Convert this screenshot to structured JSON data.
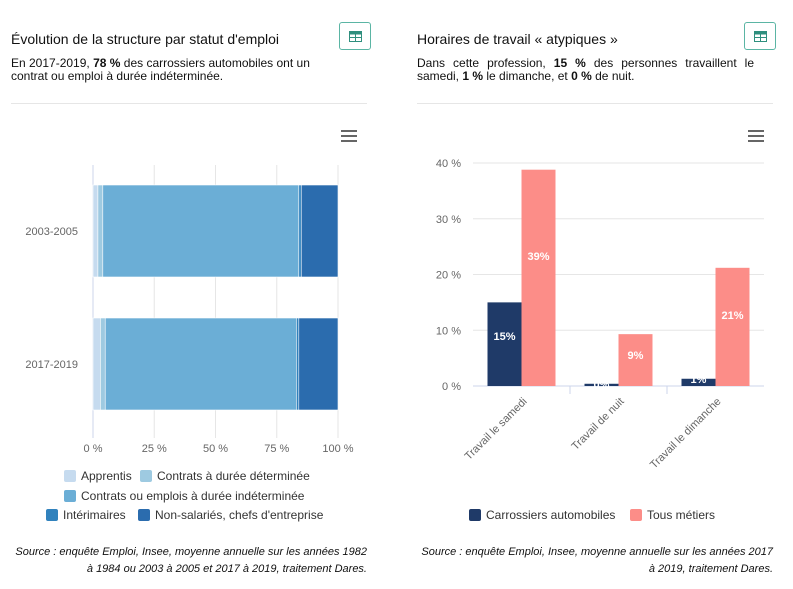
{
  "left": {
    "title": "Évolution de la structure par statut d'emploi",
    "subtitle_pre": "En 2017-2019, ",
    "subtitle_bold": "78 %",
    "subtitle_post": " des carrossiers automobiles ont un contrat ou emploi à durée indéterminée.",
    "table_icon": "table-icon",
    "menu_icon": "hamburger-menu-icon",
    "source_line1": "Source : enquête Emploi, Insee, moyenne annuelle sur les années 1982",
    "source_line2": "à 1984 ou 2003 à 2005 et 2017 à 2019, traitement Dares."
  },
  "right": {
    "title": "Horaires de travail « atypiques »",
    "subtitle_p1": "Dans cette profession, ",
    "subtitle_b1": "15 %",
    "subtitle_p2": " des personnes travaillent le samedi, ",
    "subtitle_b2": "1 %",
    "subtitle_p3": " le dimanche, et ",
    "subtitle_b3": "0 %",
    "subtitle_p4": " de nuit.",
    "table_icon": "table-icon",
    "menu_icon": "hamburger-menu-icon",
    "source_line1": "Source : enquête Emploi, Insee, moyenne annuelle sur les années 2017",
    "source_line2": "à 2019, traitement Dares."
  },
  "chart_data": [
    {
      "type": "bar",
      "orientation": "horizontal",
      "stacking": "percent",
      "title": "Évolution de la structure par statut d'emploi",
      "categories": [
        "2003-2005",
        "2017-2019"
      ],
      "x_ticks": [
        "0 %",
        "25 %",
        "50 %",
        "75 %",
        "100 %"
      ],
      "xlim": [
        0,
        100
      ],
      "legend_position": "bottom",
      "grid": true,
      "series": [
        {
          "name": "Apprentis",
          "color": "#c6dbef",
          "values": [
            2,
            3
          ]
        },
        {
          "name": "Contrats à durée déterminée",
          "color": "#9ecae1",
          "values": [
            2,
            2
          ]
        },
        {
          "name": "Contrats ou emplois à durée indéterminée",
          "color": "#6baed6",
          "values": [
            80,
            78
          ]
        },
        {
          "name": "Intérimaires",
          "color": "#3182bd",
          "values": [
            1,
            1
          ]
        },
        {
          "name": "Non-salariés, chefs d'entreprise",
          "color": "#2b6cae",
          "values": [
            15,
            16
          ]
        }
      ]
    },
    {
      "type": "bar",
      "orientation": "vertical",
      "title": "Horaires de travail « atypiques »",
      "categories": [
        "Travail le samedi",
        "Travail de nuit",
        "Travail le dimanche"
      ],
      "y_ticks": [
        "0 %",
        "10 %",
        "20 %",
        "30 %",
        "40 %"
      ],
      "ylim": [
        0,
        40
      ],
      "legend_position": "bottom",
      "grid": true,
      "series": [
        {
          "name": "Carrossiers automobiles",
          "color": "#1f3a68",
          "values": [
            15,
            0.4,
            1.3
          ],
          "labels": [
            "15%",
            "0%",
            "1%"
          ]
        },
        {
          "name": "Tous métiers",
          "color": "#fc8d88",
          "values": [
            38.8,
            9.3,
            21.2
          ],
          "labels": [
            "39%",
            "9%",
            "21%"
          ]
        }
      ]
    }
  ]
}
